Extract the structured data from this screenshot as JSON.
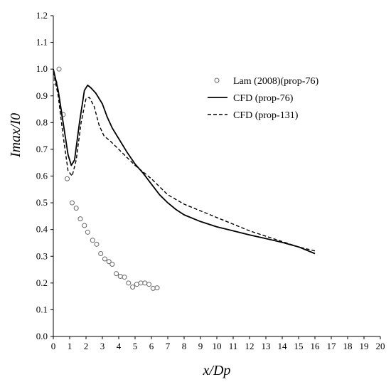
{
  "chart_data": {
    "type": "line",
    "xlabel": "x/Dp",
    "ylabel": "Imax/I0",
    "xlim": [
      0,
      20
    ],
    "ylim": [
      0,
      1.2
    ],
    "xticks": [
      0,
      1,
      2,
      3,
      4,
      5,
      6,
      7,
      8,
      9,
      10,
      11,
      12,
      13,
      14,
      15,
      16,
      17,
      18,
      19,
      20
    ],
    "yticks": [
      "0.0",
      "0.1",
      "0.2",
      "0.3",
      "0.4",
      "0.5",
      "0.6",
      "0.7",
      "0.8",
      "0.9",
      "1.0",
      "1.1",
      "1.2"
    ],
    "grid": false,
    "legend_position": "top-right",
    "series": [
      {
        "name": "Lam (2008)(prop-76)",
        "style": "open-circle-markers",
        "color": "#666666",
        "x": [
          0.1,
          0.35,
          0.6,
          0.85,
          1.15,
          1.4,
          1.65,
          1.9,
          2.1,
          2.4,
          2.65,
          2.9,
          3.15,
          3.4,
          3.6,
          3.85,
          4.1,
          4.35,
          4.6,
          4.85,
          5.1,
          5.35,
          5.6,
          5.85,
          6.1,
          6.35
        ],
        "y": [
          0.95,
          1.0,
          0.83,
          0.59,
          0.5,
          0.48,
          0.44,
          0.415,
          0.39,
          0.36,
          0.345,
          0.31,
          0.29,
          0.28,
          0.27,
          0.235,
          0.225,
          0.222,
          0.2,
          0.185,
          0.195,
          0.2,
          0.2,
          0.195,
          0.18,
          0.182
        ]
      },
      {
        "name": "CFD (prop-76)",
        "style": "solid",
        "color": "#000000",
        "x": [
          0,
          0.3,
          0.6,
          0.9,
          1.1,
          1.3,
          1.6,
          1.9,
          2.1,
          2.3,
          2.6,
          3.0,
          3.3,
          3.6,
          4.0,
          4.5,
          5.0,
          5.5,
          6.0,
          6.5,
          7.0,
          7.5,
          8.0,
          9.0,
          10.0,
          11.0,
          12.0,
          13.0,
          14.0,
          15.0,
          16.0
        ],
        "y": [
          1.0,
          0.92,
          0.8,
          0.68,
          0.64,
          0.66,
          0.8,
          0.92,
          0.94,
          0.93,
          0.91,
          0.87,
          0.82,
          0.78,
          0.74,
          0.69,
          0.645,
          0.61,
          0.57,
          0.53,
          0.5,
          0.475,
          0.455,
          0.43,
          0.41,
          0.395,
          0.38,
          0.366,
          0.352,
          0.335,
          0.31
        ]
      },
      {
        "name": "CFD (prop-131)",
        "style": "dashed",
        "color": "#000000",
        "x": [
          0,
          0.3,
          0.6,
          0.9,
          1.15,
          1.4,
          1.7,
          2.0,
          2.2,
          2.5,
          2.8,
          3.1,
          3.5,
          4.0,
          4.5,
          5.0,
          5.5,
          6.0,
          7.0,
          8.0,
          9.0,
          10.0,
          11.0,
          12.0,
          13.0,
          14.0,
          15.0,
          16.0
        ],
        "y": [
          0.99,
          0.9,
          0.75,
          0.62,
          0.6,
          0.66,
          0.8,
          0.89,
          0.895,
          0.86,
          0.79,
          0.75,
          0.73,
          0.7,
          0.67,
          0.64,
          0.615,
          0.59,
          0.53,
          0.495,
          0.47,
          0.445,
          0.42,
          0.395,
          0.375,
          0.355,
          0.335,
          0.32
        ]
      }
    ]
  }
}
